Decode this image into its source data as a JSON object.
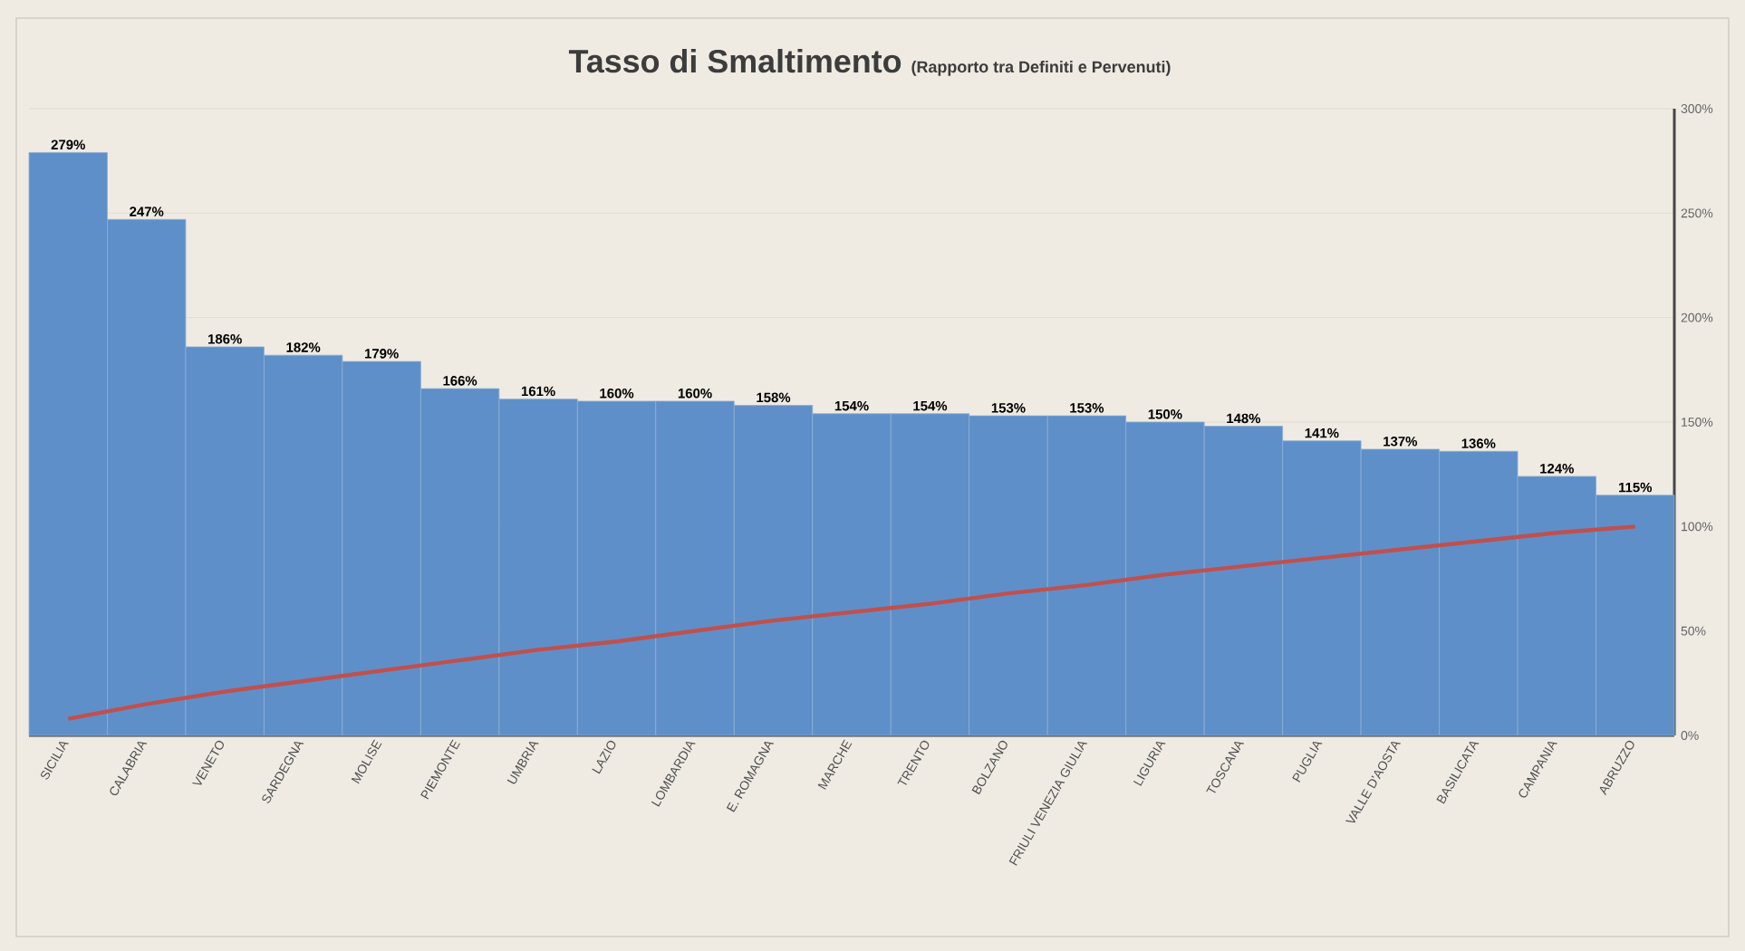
{
  "chart_data": {
    "type": "bar",
    "title": "Tasso di Smaltimento",
    "subtitle": "(Rapporto tra Definiti e Pervenuti)",
    "categories": [
      "SICILIA",
      "CALABRIA",
      "VENETO",
      "SARDEGNA",
      "MOLISE",
      "PIEMONTE",
      "UMBRIA",
      "LAZIO",
      "LOMBARDIA",
      "E. ROMAGNA",
      "MARCHE",
      "TRENTO",
      "BOLZANO",
      "FRIULI VENEZIA GIULIA",
      "LIGURIA",
      "TOSCANA",
      "PUGLIA",
      "VALLE  D'AOSTA",
      "BASILICATA",
      "CAMPANIA",
      "ABRUZZO"
    ],
    "series": [
      {
        "color": "#5f8fc8",
        "values": [
          279,
          247,
          186,
          182,
          179,
          166,
          161,
          160,
          160,
          158,
          154,
          154,
          153,
          153,
          150,
          148,
          141,
          137,
          136,
          124,
          115
        ],
        "value_labels": [
          "279%",
          "247%",
          "186%",
          "182%",
          "179%",
          "166%",
          "161%",
          "160%",
          "160%",
          "158%",
          "154%",
          "154%",
          "153%",
          "153%",
          "150%",
          "148%",
          "141%",
          "137%",
          "136%",
          "124%",
          "115%"
        ]
      },
      {
        "type": "line",
        "color": "#c0504d",
        "values": [
          8,
          15,
          21,
          26,
          31,
          36,
          41,
          45,
          50,
          55,
          59,
          63,
          68,
          72,
          77,
          81,
          85,
          89,
          93,
          97,
          100
        ]
      }
    ],
    "ylim": [
      0,
      300
    ],
    "yticks": [
      {
        "value": 0,
        "label": "0%"
      },
      {
        "value": 50,
        "label": "50%"
      },
      {
        "value": 100,
        "label": "100%"
      },
      {
        "value": 150,
        "label": "150%"
      },
      {
        "value": 200,
        "label": "200%"
      },
      {
        "value": 250,
        "label": "250%"
      },
      {
        "value": 300,
        "label": "300%"
      }
    ],
    "grid": "y",
    "marker": "none",
    "line_style": "solid"
  }
}
